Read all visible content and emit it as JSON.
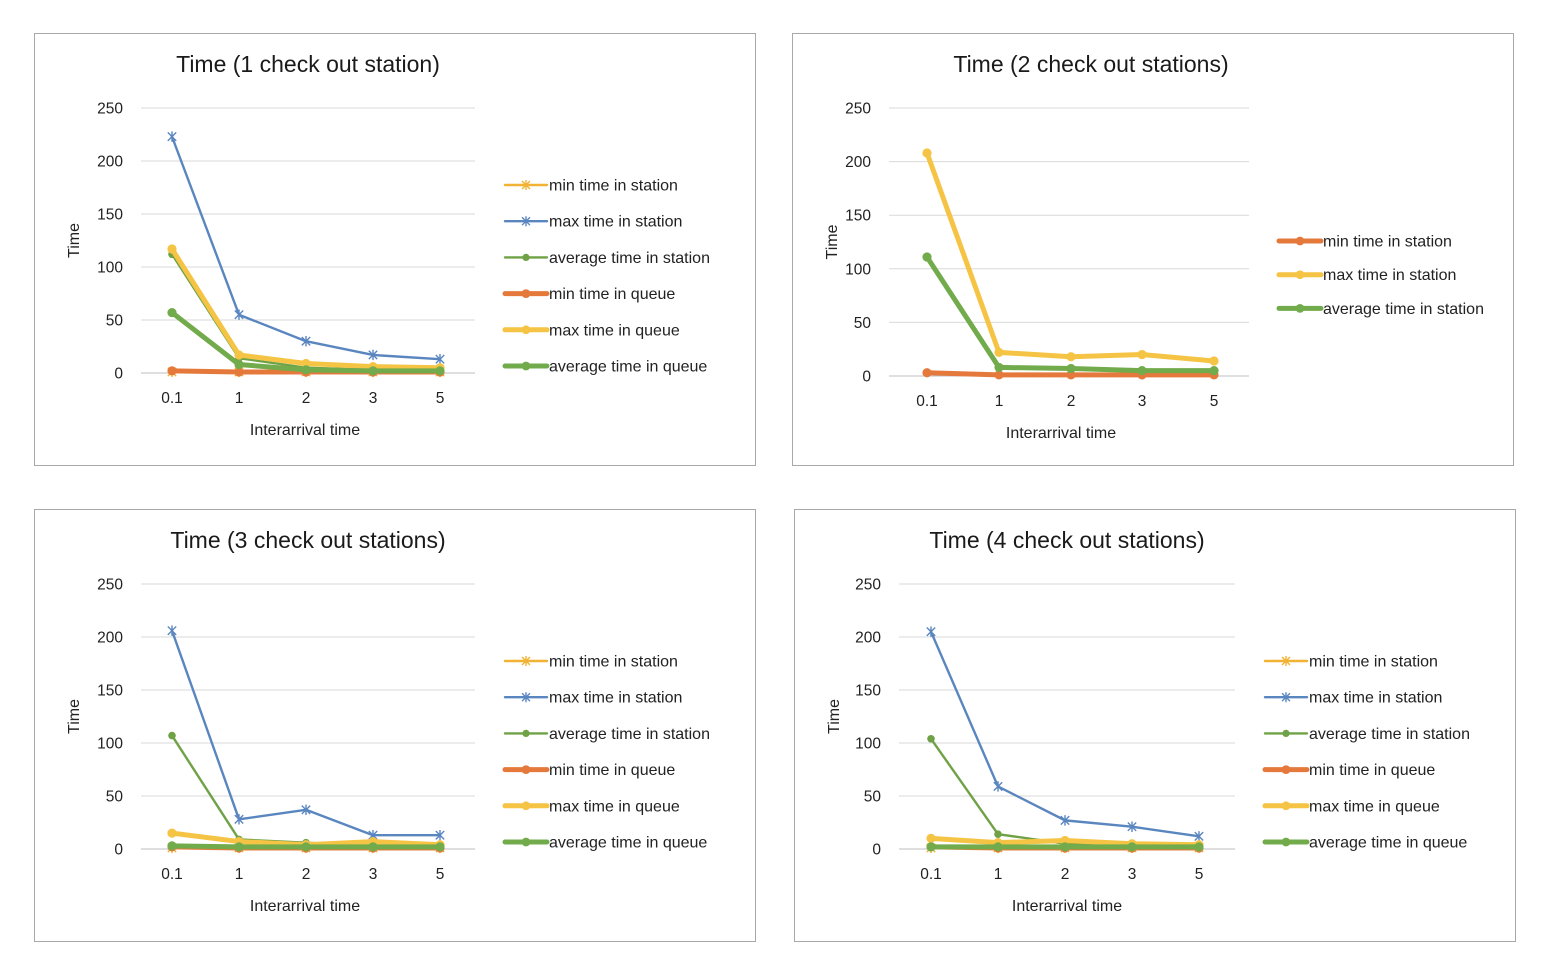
{
  "chart_data": [
    {
      "type": "line",
      "title": "Time (1 check out station)",
      "xlabel": "Interarrival time",
      "ylabel": "Time",
      "categories": [
        "0.1",
        "1",
        "2",
        "3",
        "5"
      ],
      "ylim": [
        0,
        250
      ],
      "yticks": [
        0,
        50,
        100,
        150,
        200,
        250
      ],
      "grid": true,
      "legend": "right",
      "series": [
        {
          "name": "min time in station",
          "values": [
            1,
            1,
            1,
            1,
            1
          ],
          "color": "#f2b233",
          "marker": "x",
          "width": "thin"
        },
        {
          "name": "max time in station",
          "values": [
            223,
            55,
            30,
            17,
            13
          ],
          "color": "#5a86c0",
          "marker": "x",
          "width": "thin"
        },
        {
          "name": "average time in station",
          "values": [
            112,
            14,
            5,
            3,
            2
          ],
          "color": "#6fa246",
          "marker": "dot",
          "width": "thin"
        },
        {
          "name": "min time in queue",
          "values": [
            2,
            1,
            1,
            1,
            1
          ],
          "color": "#e5793c",
          "marker": "dot",
          "width": "thick"
        },
        {
          "name": "max time in queue",
          "values": [
            117,
            17,
            9,
            6,
            5
          ],
          "color": "#f6c444",
          "marker": "dot",
          "width": "thick"
        },
        {
          "name": "average time in queue",
          "values": [
            57,
            8,
            3,
            2,
            2
          ],
          "color": "#72ab4c",
          "marker": "dot",
          "width": "thick"
        }
      ]
    },
    {
      "type": "line",
      "title": "Time (2 check out stations)",
      "xlabel": "Interarrival time",
      "ylabel": "Time",
      "categories": [
        "0.1",
        "1",
        "2",
        "3",
        "5"
      ],
      "ylim": [
        0,
        250
      ],
      "yticks": [
        0,
        50,
        100,
        150,
        200,
        250
      ],
      "grid": true,
      "legend": "right",
      "series": [
        {
          "name": "min time in station",
          "values": [
            3,
            1,
            1,
            1,
            1
          ],
          "color": "#e5793c",
          "marker": "dot",
          "width": "thick"
        },
        {
          "name": "max time in station",
          "values": [
            208,
            22,
            18,
            20,
            14
          ],
          "color": "#f6c444",
          "marker": "dot",
          "width": "thick"
        },
        {
          "name": "average time in station",
          "values": [
            111,
            8,
            7,
            5,
            5
          ],
          "color": "#72ab4c",
          "marker": "dot",
          "width": "thick"
        }
      ]
    },
    {
      "type": "line",
      "title": "Time (3 check out stations)",
      "xlabel": "Interarrival time",
      "ylabel": "Time",
      "categories": [
        "0.1",
        "1",
        "2",
        "3",
        "5"
      ],
      "ylim": [
        0,
        250
      ],
      "yticks": [
        0,
        50,
        100,
        150,
        200,
        250
      ],
      "grid": true,
      "legend": "right",
      "series": [
        {
          "name": "min time in station",
          "values": [
            1,
            1,
            1,
            1,
            1
          ],
          "color": "#f2b233",
          "marker": "x",
          "width": "thin"
        },
        {
          "name": "max time in station",
          "values": [
            206,
            28,
            37,
            13,
            13
          ],
          "color": "#5a86c0",
          "marker": "x",
          "width": "thin"
        },
        {
          "name": "average time in station",
          "values": [
            107,
            9,
            6,
            3,
            3
          ],
          "color": "#6fa246",
          "marker": "dot",
          "width": "thin"
        },
        {
          "name": "min time in queue",
          "values": [
            2,
            1,
            1,
            1,
            1
          ],
          "color": "#e5793c",
          "marker": "dot",
          "width": "thick"
        },
        {
          "name": "max time in queue",
          "values": [
            15,
            7,
            4,
            7,
            4
          ],
          "color": "#f6c444",
          "marker": "dot",
          "width": "thick"
        },
        {
          "name": "average time in queue",
          "values": [
            3,
            2,
            2,
            2,
            2
          ],
          "color": "#72ab4c",
          "marker": "dot",
          "width": "thick"
        }
      ]
    },
    {
      "type": "line",
      "title": "Time (4 check out stations)",
      "xlabel": "Interarrival time",
      "ylabel": "Time",
      "categories": [
        "0.1",
        "1",
        "2",
        "3",
        "5"
      ],
      "ylim": [
        0,
        250
      ],
      "yticks": [
        0,
        50,
        100,
        150,
        200,
        250
      ],
      "grid": true,
      "legend": "right",
      "series": [
        {
          "name": "min time in station",
          "values": [
            1,
            1,
            1,
            1,
            1
          ],
          "color": "#f2b233",
          "marker": "x",
          "width": "thin"
        },
        {
          "name": "max time in station",
          "values": [
            205,
            59,
            27,
            21,
            12
          ],
          "color": "#5a86c0",
          "marker": "x",
          "width": "thin"
        },
        {
          "name": "average time in station",
          "values": [
            104,
            14,
            5,
            3,
            3
          ],
          "color": "#6fa246",
          "marker": "dot",
          "width": "thin"
        },
        {
          "name": "min time in queue",
          "values": [
            2,
            1,
            1,
            1,
            1
          ],
          "color": "#e5793c",
          "marker": "dot",
          "width": "thick"
        },
        {
          "name": "max time in queue",
          "values": [
            10,
            6,
            8,
            5,
            4
          ],
          "color": "#f6c444",
          "marker": "dot",
          "width": "thick"
        },
        {
          "name": "average time in queue",
          "values": [
            2,
            2,
            2,
            2,
            2
          ],
          "color": "#72ab4c",
          "marker": "dot",
          "width": "thick"
        }
      ]
    }
  ]
}
